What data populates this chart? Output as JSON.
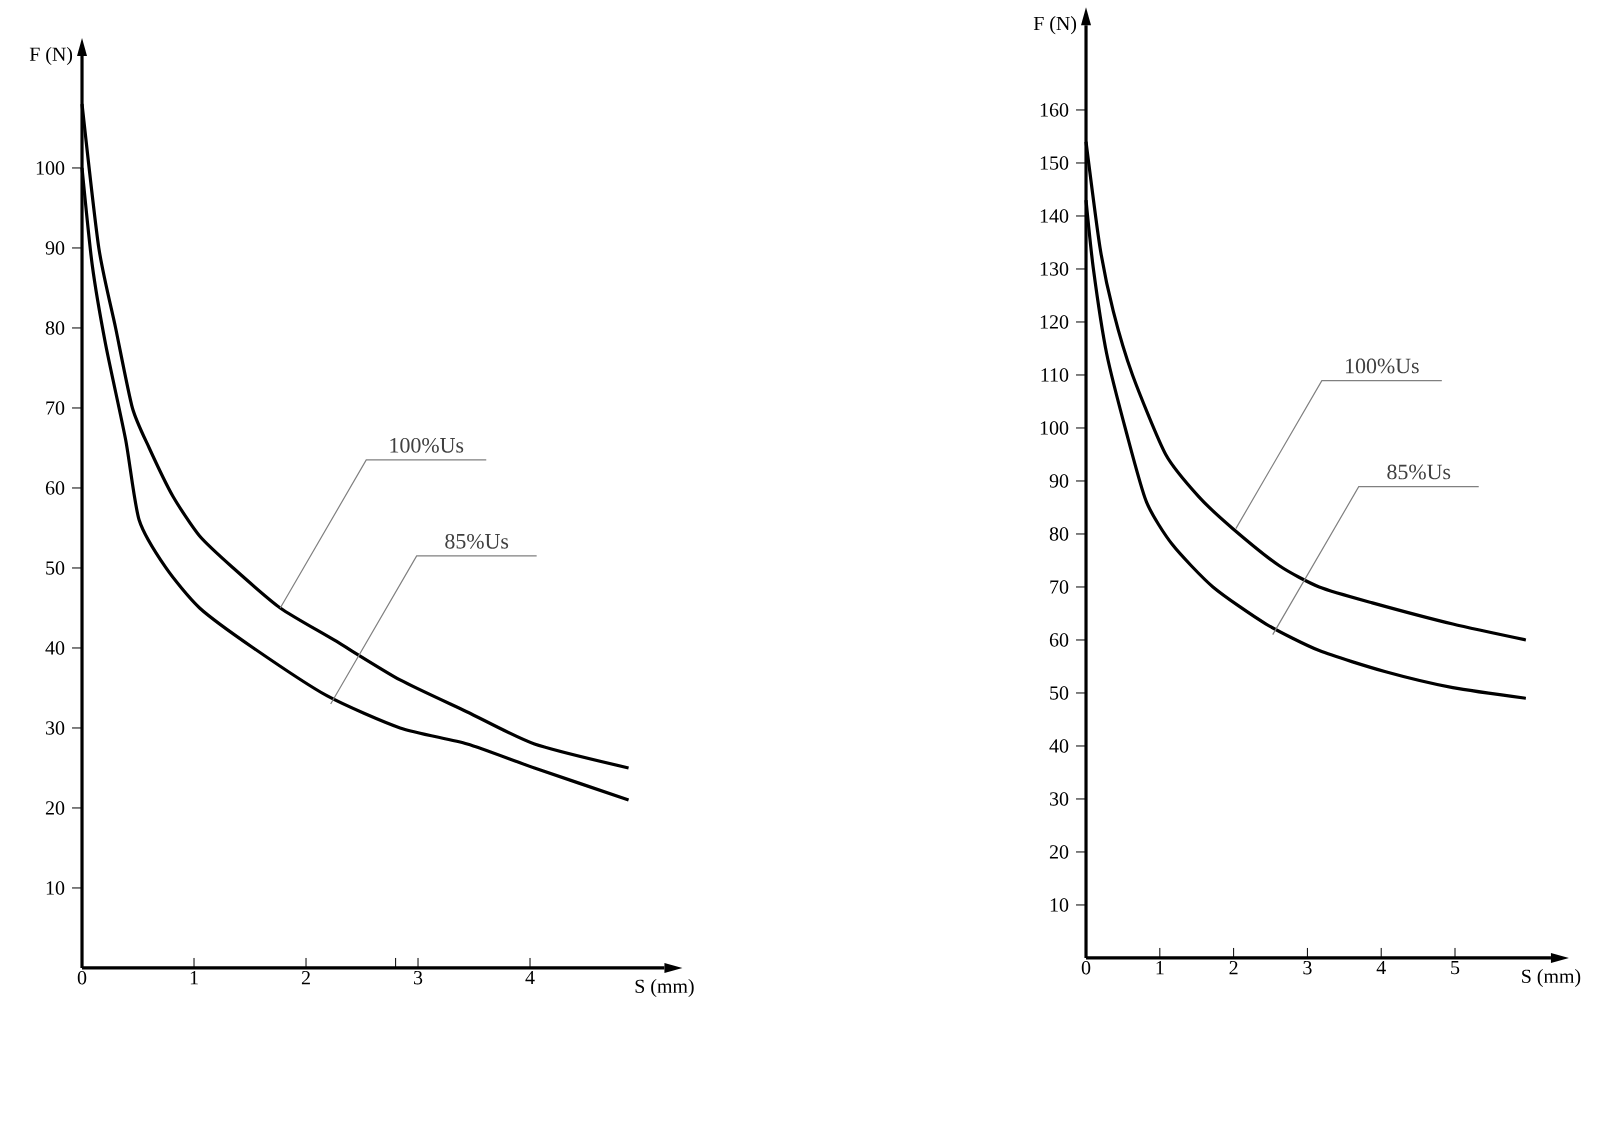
{
  "chart_data": [
    {
      "type": "line",
      "xlabel": "S (mm)",
      "ylabel": "F (N)",
      "xlim": [
        0,
        5.2
      ],
      "ylim": [
        0,
        114
      ],
      "xticks": [
        0,
        1,
        2,
        {
          "value": 2.8,
          "label": null
        },
        3,
        4
      ],
      "yticks": [
        10,
        20,
        30,
        40,
        50,
        60,
        70,
        80,
        90,
        100
      ],
      "series": [
        {
          "color": "#000000",
          "x": [
            0,
            0.15,
            0.3,
            0.45,
            0.6,
            0.81,
            1.05,
            1.35,
            1.77,
            2.25,
            2.84,
            3.44,
            4.04,
            4.88
          ],
          "values": [
            108,
            90,
            80,
            70,
            65,
            59,
            54,
            50,
            45,
            41,
            36,
            32,
            28,
            25
          ]
        },
        {
          "color": "#000000",
          "x": [
            0,
            0.09,
            0.21,
            0.39,
            0.51,
            0.75,
            1.05,
            1.53,
            2.19,
            2.84,
            3.44,
            4.04,
            4.88
          ],
          "values": [
            100,
            88,
            78,
            66,
            56,
            50,
            45,
            40,
            34,
            30,
            28,
            25,
            21
          ]
        }
      ],
      "annotations": [
        {
          "text": "100%Us",
          "x": 1.77,
          "y": 45
        },
        {
          "text": "85%Us",
          "x": 2.22,
          "y": 33
        }
      ]
    },
    {
      "type": "line",
      "xlabel": "S (mm)",
      "ylabel": "F (N)",
      "xlim": [
        0,
        6.3
      ],
      "ylim": [
        0,
        176
      ],
      "xticks": [
        0,
        1,
        2,
        3,
        4,
        5
      ],
      "yticks": [
        10,
        20,
        30,
        40,
        50,
        60,
        70,
        80,
        90,
        100,
        110,
        120,
        130,
        140,
        150,
        160
      ],
      "series": [
        {
          "color": "#000000",
          "x": [
            0,
            0.19,
            0.37,
            0.63,
            1.08,
            1.53,
            1.99,
            2.62,
            3.16,
            3.88,
            4.97,
            5.96
          ],
          "values": [
            154,
            134,
            122,
            110,
            95,
            87,
            81,
            74,
            70,
            67,
            63,
            60
          ]
        },
        {
          "color": "#000000",
          "x": [
            0,
            0.1,
            0.28,
            0.55,
            0.82,
            1.17,
            1.72,
            2.44,
            3.16,
            4.06,
            4.97,
            5.96
          ],
          "values": [
            143,
            130,
            114,
            99,
            86,
            78,
            70,
            63,
            58,
            54,
            51,
            49
          ]
        }
      ],
      "annotations": [
        {
          "text": "100%Us",
          "x": 2.03,
          "y": 81
        },
        {
          "text": "85%Us",
          "x": 2.53,
          "y": 61
        }
      ]
    }
  ]
}
